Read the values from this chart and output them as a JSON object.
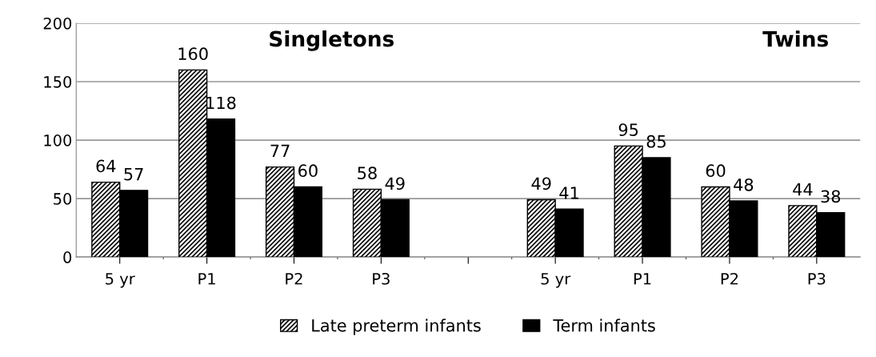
{
  "chart_data": {
    "type": "bar",
    "categories": [
      "5 yr",
      "P1",
      "P2",
      "P3",
      null,
      "5 yr",
      "P1",
      "P2",
      "P3"
    ],
    "series": [
      {
        "name": "Late preterm infants",
        "color": "#000000",
        "values": [
          64,
          160,
          77,
          58,
          null,
          49,
          95,
          60,
          44
        ]
      },
      {
        "name": "Term infants",
        "color": "#000000",
        "values": [
          57,
          118,
          60,
          49,
          null,
          41,
          85,
          48,
          38
        ]
      }
    ],
    "ylim": [
      0,
      200
    ],
    "yticks": [
      0,
      50,
      100,
      150,
      200
    ],
    "grid": "y",
    "legend": "bottom",
    "data_labels": true,
    "annotations": [
      "Singletons",
      "Twins"
    ]
  }
}
